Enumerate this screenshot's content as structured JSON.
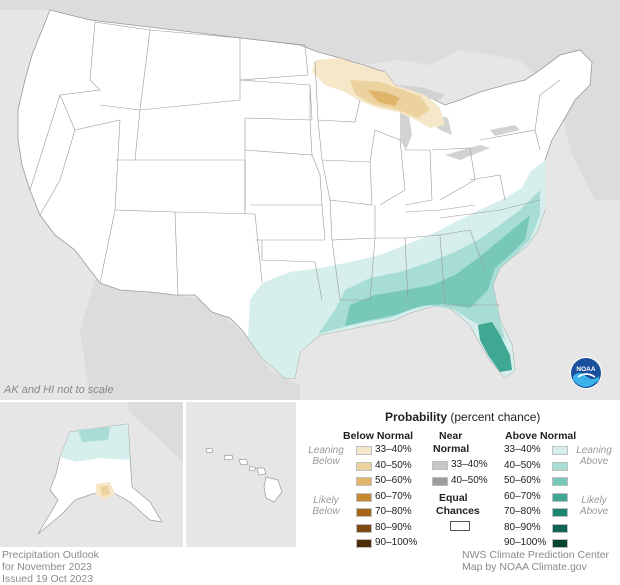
{
  "map": {
    "scale_note": "AK and HI not to scale",
    "logo_text": "NOAA"
  },
  "legend": {
    "title": "Probability",
    "subtitle": "(percent chance)",
    "below_header": "Below Normal",
    "near_header_1": "Near",
    "near_header_2": "Normal",
    "above_header": "Above Normal",
    "equal_1": "Equal",
    "equal_2": "Chances",
    "leaning_below_1": "Leaning",
    "leaning_below_2": "Below",
    "likely_below_1": "Likely",
    "likely_below_2": "Below",
    "leaning_above_1": "Leaning",
    "leaning_above_2": "Above",
    "likely_above_1": "Likely",
    "likely_above_2": "Above",
    "below_items": [
      {
        "label": "33–40%",
        "color": "#f6e7c8"
      },
      {
        "label": "40–50%",
        "color": "#ecd29f"
      },
      {
        "label": "50–60%",
        "color": "#dfb56a"
      },
      {
        "label": "60–70%",
        "color": "#c68a33"
      },
      {
        "label": "70–80%",
        "color": "#a5651b"
      },
      {
        "label": "80–90%",
        "color": "#7b4a12"
      },
      {
        "label": "90–100%",
        "color": "#4e2c07"
      }
    ],
    "near_items": [
      {
        "label": "33–40%",
        "color": "#c7c7c7"
      },
      {
        "label": "40–50%",
        "color": "#9d9d9d"
      }
    ],
    "above_items": [
      {
        "label": "33–40%",
        "color": "#d6efec"
      },
      {
        "label": "40–50%",
        "color": "#a7ddd4"
      },
      {
        "label": "50–60%",
        "color": "#78c8b9"
      },
      {
        "label": "60–70%",
        "color": "#3fa792"
      },
      {
        "label": "70–80%",
        "color": "#1e8571"
      },
      {
        "label": "80–90%",
        "color": "#0e6451"
      },
      {
        "label": "90–100%",
        "color": "#054333"
      }
    ]
  },
  "footer": {
    "left_1": "Precipitation Outlook",
    "left_2": "for November 2023",
    "left_3": "Issued 19 Oct 2023",
    "right_1": "NWS Climate Prediction Center",
    "right_2": "Map by NOAA Climate.gov"
  }
}
